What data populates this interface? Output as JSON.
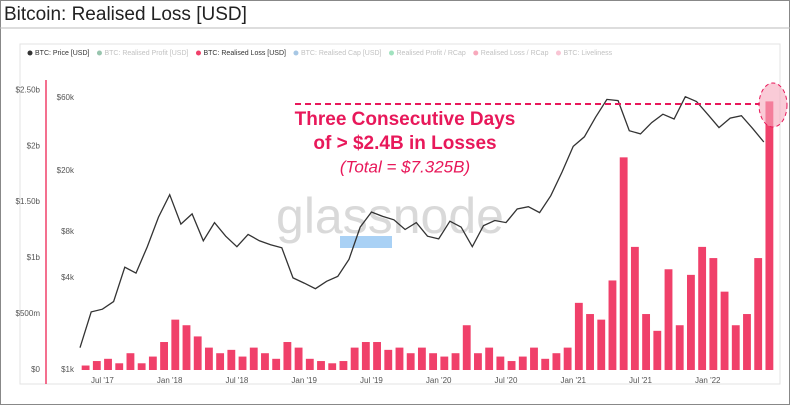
{
  "chart_data": {
    "type": "price-loss",
    "title": "Bitcoin: Realised Loss [USD]",
    "watermark": "glassnode",
    "annotations": [
      "Three Consecutive Days",
      "of > $2.4B in Losses",
      "(Total = $7.325B)"
    ],
    "x": [
      "2017-05",
      "2017-06",
      "2017-07",
      "2017-08",
      "2017-09",
      "2017-10",
      "2017-11",
      "2017-12",
      "2018-01",
      "2018-02",
      "2018-03",
      "2018-04",
      "2018-05",
      "2018-06",
      "2018-07",
      "2018-08",
      "2018-09",
      "2018-10",
      "2018-11",
      "2018-12",
      "2019-01",
      "2019-02",
      "2019-03",
      "2019-04",
      "2019-05",
      "2019-06",
      "2019-07",
      "2019-08",
      "2019-09",
      "2019-10",
      "2019-11",
      "2019-12",
      "2020-01",
      "2020-02",
      "2020-03",
      "2020-04",
      "2020-05",
      "2020-06",
      "2020-07",
      "2020-08",
      "2020-09",
      "2020-10",
      "2020-11",
      "2020-12",
      "2021-01",
      "2021-02",
      "2021-03",
      "2021-04",
      "2021-05",
      "2021-06",
      "2021-07",
      "2021-08",
      "2021-09",
      "2021-10",
      "2021-11",
      "2021-12",
      "2022-01",
      "2022-02",
      "2022-03",
      "2022-04",
      "2022-05",
      "2022-06"
    ],
    "xlim": [
      "2017-05",
      "2022-07"
    ],
    "xticks": [
      {
        "value": "2017-07",
        "label": "Jul '17"
      },
      {
        "value": "2018-01",
        "label": "Jan '18"
      },
      {
        "value": "2018-07",
        "label": "Jul '18"
      },
      {
        "value": "2019-01",
        "label": "Jan '19"
      },
      {
        "value": "2019-07",
        "label": "Jul '19"
      },
      {
        "value": "2020-01",
        "label": "Jan '20"
      },
      {
        "value": "2020-07",
        "label": "Jul '20"
      },
      {
        "value": "2021-01",
        "label": "Jan '21"
      },
      {
        "value": "2021-07",
        "label": "Jul '21"
      },
      {
        "value": "2022-01",
        "label": "Jan '22"
      }
    ],
    "ylim": [
      0,
      2600000000
    ],
    "yticks": [
      {
        "value": 0,
        "label": "$0"
      },
      {
        "value": 500000000,
        "label": "$500m"
      },
      {
        "value": 1000000000,
        "label": "$1b"
      },
      {
        "value": 1500000000,
        "label": "$1.50b"
      },
      {
        "value": 2000000000,
        "label": "$2b"
      },
      {
        "value": 2500000000,
        "label": "$2.50b"
      }
    ],
    "y2lim": [
      1000,
      80000
    ],
    "y2_log": true,
    "y2ticks": [
      {
        "value": 1000,
        "label": "$1k"
      },
      {
        "value": 4000,
        "label": "$4k"
      },
      {
        "value": 8000,
        "label": "$8k"
      },
      {
        "value": 20000,
        "label": "$20k"
      },
      {
        "value": 60000,
        "label": "$60k"
      }
    ],
    "series": [
      {
        "name": "BTC: Price [USD]",
        "color": "#333333",
        "axis": "y2",
        "values": [
          1400,
          2400,
          2500,
          2800,
          4700,
          4300,
          6400,
          10000,
          14000,
          9000,
          10500,
          7000,
          9200,
          7500,
          6400,
          7700,
          7000,
          6600,
          6300,
          4000,
          3700,
          3400,
          3800,
          4100,
          5300,
          8600,
          10800,
          10100,
          9600,
          8300,
          9200,
          7500,
          7200,
          9400,
          8600,
          6400,
          8800,
          9500,
          9200,
          11300,
          11700,
          10700,
          13800,
          19700,
          29000,
          33500,
          45000,
          58800,
          57800,
          36700,
          35000,
          41500,
          47100,
          43800,
          61300,
          57000,
          47000,
          38500,
          44400,
          46000,
          38000,
          31000
        ]
      },
      {
        "name": "BTC: Realised Loss [USD]",
        "color": "#f0406a",
        "axis": "y",
        "values": [
          40000000,
          80000000,
          100000000,
          60000000,
          150000000,
          60000000,
          120000000,
          250000000,
          450000000,
          400000000,
          300000000,
          200000000,
          150000000,
          180000000,
          120000000,
          200000000,
          150000000,
          100000000,
          250000000,
          200000000,
          100000000,
          80000000,
          60000000,
          80000000,
          200000000,
          250000000,
          250000000,
          180000000,
          200000000,
          150000000,
          200000000,
          150000000,
          120000000,
          150000000,
          400000000,
          150000000,
          200000000,
          120000000,
          80000000,
          120000000,
          200000000,
          100000000,
          150000000,
          200000000,
          600000000,
          500000000,
          450000000,
          800000000,
          1900000000,
          1100000000,
          500000000,
          350000000,
          900000000,
          400000000,
          850000000,
          1100000000,
          1000000000,
          700000000,
          400000000,
          500000000,
          1000000000,
          2400000000
        ]
      }
    ],
    "inactive_series": [
      {
        "name": "BTC: Realised Profit [USD]",
        "color": "#1a7f4b"
      },
      {
        "name": "BTC: Realised Cap [USD]",
        "color": "#3b82c4"
      },
      {
        "name": "Realised Profit / RCap",
        "color": "#2fbf71"
      },
      {
        "name": "Realised Loss / RCap",
        "color": "#f0406a"
      },
      {
        "name": "BTC: Liveliness",
        "color": "#f27ea0"
      }
    ]
  }
}
